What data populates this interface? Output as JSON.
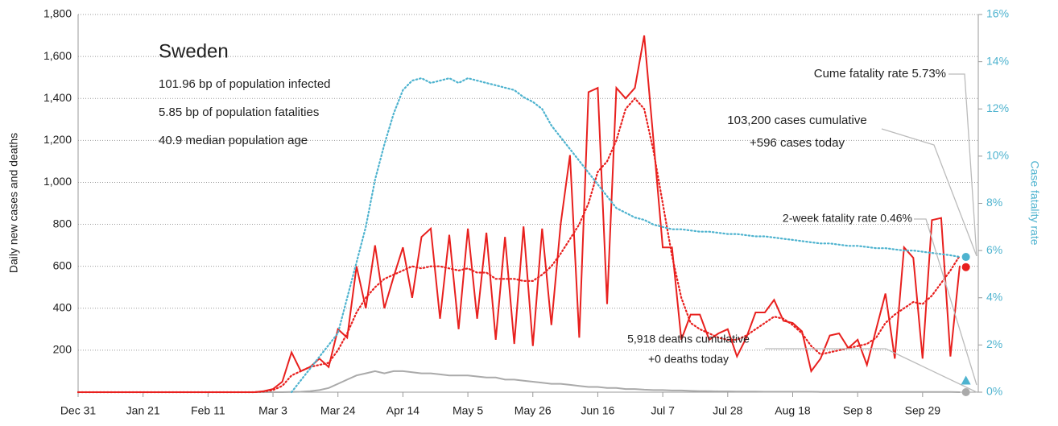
{
  "chart_data": {
    "type": "line",
    "annotations": [
      "Sweden",
      "101.96 bp of population infected",
      "5.85 bp of population fatalities",
      "40.9 median population age",
      "Cume fatality rate 5.73%",
      "103,200 cases cumulative",
      "+596 cases today",
      "2-week fatality rate 0.46%",
      "5,918 deaths cumulative",
      "+0 deaths today"
    ],
    "ylabel": "Daily new cases and deaths",
    "y2label": "Case fatality rate",
    "xlim": [
      0,
      291
    ],
    "ylim": [
      0,
      1800
    ],
    "y2lim": [
      0,
      16
    ],
    "xticks": [
      {
        "value": 0,
        "label": "Dec 31"
      },
      {
        "value": 21,
        "label": "Jan 21"
      },
      {
        "value": 42,
        "label": "Feb 11"
      },
      {
        "value": 63,
        "label": "Mar 3"
      },
      {
        "value": 84,
        "label": "Mar 24"
      },
      {
        "value": 105,
        "label": "Apr 14"
      },
      {
        "value": 126,
        "label": "May 5"
      },
      {
        "value": 147,
        "label": "May 26"
      },
      {
        "value": 168,
        "label": "Jun 16"
      },
      {
        "value": 189,
        "label": "Jul 7"
      },
      {
        "value": 210,
        "label": "Jul 28"
      },
      {
        "value": 231,
        "label": "Aug 18"
      },
      {
        "value": 252,
        "label": "Sep 8"
      },
      {
        "value": 273,
        "label": "Sep 29"
      }
    ],
    "yticks": [
      200,
      400,
      600,
      800,
      {
        "value": 1000,
        "label": "1,000"
      },
      {
        "value": 1200,
        "label": "1,200"
      },
      {
        "value": 1400,
        "label": "1,400"
      },
      {
        "value": 1600,
        "label": "1,600"
      },
      {
        "value": 1800,
        "label": "1,800"
      }
    ],
    "y2ticks": [
      {
        "value": 0,
        "label": "0%"
      },
      {
        "value": 2,
        "label": "2%"
      },
      {
        "value": 4,
        "label": "4%"
      },
      {
        "value": 6,
        "label": "6%"
      },
      {
        "value": 8,
        "label": "8%"
      },
      {
        "value": 10,
        "label": "10%"
      },
      {
        "value": 12,
        "label": "12%"
      },
      {
        "value": 14,
        "label": "14%"
      },
      {
        "value": 16,
        "label": "16%"
      }
    ],
    "grid": true,
    "x": [
      0,
      54,
      57,
      60,
      63,
      66,
      69,
      72,
      75,
      78,
      81,
      84,
      87,
      90,
      93,
      96,
      99,
      102,
      105,
      108,
      111,
      114,
      117,
      120,
      123,
      126,
      129,
      132,
      135,
      138,
      141,
      144,
      147,
      150,
      153,
      156,
      159,
      162,
      165,
      168,
      171,
      174,
      177,
      180,
      183,
      186,
      189,
      192,
      195,
      198,
      201,
      204,
      207,
      210,
      213,
      216,
      219,
      222,
      225,
      228,
      231,
      234,
      237,
      240,
      243,
      246,
      249,
      252,
      255,
      258,
      261,
      264,
      267,
      270,
      273,
      276,
      279,
      282,
      285
    ],
    "series": [
      {
        "color": "#aaaaaa",
        "style": "solid",
        "values": [
          0,
          0,
          0,
          0,
          0,
          0,
          1,
          2,
          5,
          10,
          20,
          40,
          60,
          80,
          90,
          100,
          90,
          100,
          100,
          95,
          90,
          90,
          85,
          80,
          80,
          80,
          75,
          70,
          70,
          60,
          60,
          55,
          50,
          45,
          40,
          40,
          35,
          30,
          25,
          25,
          20,
          20,
          15,
          15,
          12,
          10,
          10,
          8,
          8,
          6,
          5,
          5,
          4,
          4,
          3,
          3,
          3,
          2,
          2,
          2,
          2,
          2,
          2,
          1,
          1,
          1,
          1,
          1,
          1,
          1,
          1,
          1,
          1,
          1,
          1,
          1,
          1,
          1,
          0
        ]
      },
      {
        "color": "#e8201e",
        "style": "dotted",
        "values": [
          0,
          0,
          0,
          3,
          10,
          30,
          80,
          100,
          120,
          130,
          140,
          200,
          280,
          380,
          450,
          500,
          540,
          560,
          580,
          600,
          590,
          600,
          600,
          590,
          580,
          590,
          570,
          570,
          540,
          540,
          540,
          530,
          530,
          560,
          600,
          660,
          730,
          800,
          900,
          1050,
          1100,
          1200,
          1350,
          1400,
          1350,
          1150,
          900,
          650,
          450,
          330,
          300,
          280,
          260,
          250,
          250,
          270,
          300,
          330,
          360,
          350,
          320,
          280,
          220,
          180,
          190,
          200,
          210,
          220,
          230,
          260,
          330,
          370,
          400,
          430,
          420,
          460,
          520,
          580,
          650
        ]
      },
      {
        "color": "#e8201e",
        "style": "solid",
        "values": [
          0,
          0,
          0,
          5,
          15,
          50,
          190,
          100,
          120,
          160,
          120,
          300,
          260,
          600,
          400,
          700,
          400,
          550,
          690,
          450,
          740,
          780,
          350,
          750,
          300,
          780,
          350,
          760,
          250,
          740,
          230,
          790,
          220,
          780,
          320,
          800,
          1130,
          260,
          1430,
          1450,
          420,
          1450,
          1400,
          1450,
          1700,
          1200,
          690,
          690,
          250,
          370,
          370,
          250,
          280,
          300,
          170,
          260,
          380,
          380,
          440,
          340,
          330,
          290,
          100,
          160,
          270,
          280,
          210,
          250,
          130,
          300,
          470,
          160,
          690,
          640,
          160,
          820,
          830,
          170,
          600
        ]
      },
      {
        "color": "#4eb3cf",
        "style": "dotted",
        "axis": "y2",
        "values": [
          null,
          null,
          null,
          null,
          null,
          null,
          0,
          0.5,
          1,
          1.5,
          2,
          2.5,
          4,
          5.5,
          7,
          9,
          10.5,
          11.8,
          12.8,
          13.2,
          13.3,
          13.1,
          13.2,
          13.3,
          13.1,
          13.3,
          13.2,
          13.1,
          13.0,
          12.9,
          12.8,
          12.5,
          12.3,
          12.0,
          11.3,
          10.8,
          10.3,
          9.8,
          9.3,
          8.8,
          8.3,
          7.8,
          7.6,
          7.4,
          7.3,
          7.1,
          7.0,
          6.9,
          6.9,
          6.85,
          6.8,
          6.8,
          6.75,
          6.7,
          6.7,
          6.65,
          6.6,
          6.6,
          6.55,
          6.5,
          6.45,
          6.4,
          6.35,
          6.3,
          6.3,
          6.25,
          6.2,
          6.2,
          6.15,
          6.1,
          6.1,
          6.05,
          6.0,
          6.0,
          5.95,
          5.9,
          5.85,
          5.8,
          5.73
        ]
      }
    ],
    "markers": [
      {
        "x": 287,
        "value": 596,
        "color": "#e8201e",
        "shape": "circle"
      },
      {
        "x": 287,
        "value": 0,
        "color": "#aaaaaa",
        "shape": "circle"
      },
      {
        "x": 287,
        "value": 5.73,
        "axis": "y2",
        "color": "#4eb3cf",
        "shape": "circle"
      },
      {
        "x": 287,
        "value": 0.46,
        "axis": "y2",
        "color": "#4eb3cf",
        "shape": "triangle"
      }
    ]
  }
}
